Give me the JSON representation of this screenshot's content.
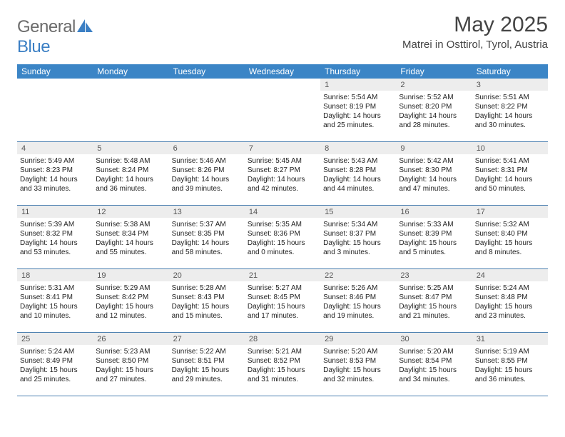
{
  "brand": {
    "part1": "General",
    "part2": "Blue"
  },
  "title": "May 2025",
  "location": "Matrei in Osttirol, Tyrol, Austria",
  "colors": {
    "header_bg": "#3b85c6",
    "daynum_bg": "#ededed",
    "rule": "#4a7fb0",
    "text": "#222222",
    "muted": "#6b6b6b"
  },
  "days_of_week": [
    "Sunday",
    "Monday",
    "Tuesday",
    "Wednesday",
    "Thursday",
    "Friday",
    "Saturday"
  ],
  "weeks": [
    [
      {
        "n": "",
        "sr": "",
        "ss": "",
        "dl1": "",
        "dl2": ""
      },
      {
        "n": "",
        "sr": "",
        "ss": "",
        "dl1": "",
        "dl2": ""
      },
      {
        "n": "",
        "sr": "",
        "ss": "",
        "dl1": "",
        "dl2": ""
      },
      {
        "n": "",
        "sr": "",
        "ss": "",
        "dl1": "",
        "dl2": ""
      },
      {
        "n": "1",
        "sr": "Sunrise: 5:54 AM",
        "ss": "Sunset: 8:19 PM",
        "dl1": "Daylight: 14 hours",
        "dl2": "and 25 minutes."
      },
      {
        "n": "2",
        "sr": "Sunrise: 5:52 AM",
        "ss": "Sunset: 8:20 PM",
        "dl1": "Daylight: 14 hours",
        "dl2": "and 28 minutes."
      },
      {
        "n": "3",
        "sr": "Sunrise: 5:51 AM",
        "ss": "Sunset: 8:22 PM",
        "dl1": "Daylight: 14 hours",
        "dl2": "and 30 minutes."
      }
    ],
    [
      {
        "n": "4",
        "sr": "Sunrise: 5:49 AM",
        "ss": "Sunset: 8:23 PM",
        "dl1": "Daylight: 14 hours",
        "dl2": "and 33 minutes."
      },
      {
        "n": "5",
        "sr": "Sunrise: 5:48 AM",
        "ss": "Sunset: 8:24 PM",
        "dl1": "Daylight: 14 hours",
        "dl2": "and 36 minutes."
      },
      {
        "n": "6",
        "sr": "Sunrise: 5:46 AM",
        "ss": "Sunset: 8:26 PM",
        "dl1": "Daylight: 14 hours",
        "dl2": "and 39 minutes."
      },
      {
        "n": "7",
        "sr": "Sunrise: 5:45 AM",
        "ss": "Sunset: 8:27 PM",
        "dl1": "Daylight: 14 hours",
        "dl2": "and 42 minutes."
      },
      {
        "n": "8",
        "sr": "Sunrise: 5:43 AM",
        "ss": "Sunset: 8:28 PM",
        "dl1": "Daylight: 14 hours",
        "dl2": "and 44 minutes."
      },
      {
        "n": "9",
        "sr": "Sunrise: 5:42 AM",
        "ss": "Sunset: 8:30 PM",
        "dl1": "Daylight: 14 hours",
        "dl2": "and 47 minutes."
      },
      {
        "n": "10",
        "sr": "Sunrise: 5:41 AM",
        "ss": "Sunset: 8:31 PM",
        "dl1": "Daylight: 14 hours",
        "dl2": "and 50 minutes."
      }
    ],
    [
      {
        "n": "11",
        "sr": "Sunrise: 5:39 AM",
        "ss": "Sunset: 8:32 PM",
        "dl1": "Daylight: 14 hours",
        "dl2": "and 53 minutes."
      },
      {
        "n": "12",
        "sr": "Sunrise: 5:38 AM",
        "ss": "Sunset: 8:34 PM",
        "dl1": "Daylight: 14 hours",
        "dl2": "and 55 minutes."
      },
      {
        "n": "13",
        "sr": "Sunrise: 5:37 AM",
        "ss": "Sunset: 8:35 PM",
        "dl1": "Daylight: 14 hours",
        "dl2": "and 58 minutes."
      },
      {
        "n": "14",
        "sr": "Sunrise: 5:35 AM",
        "ss": "Sunset: 8:36 PM",
        "dl1": "Daylight: 15 hours",
        "dl2": "and 0 minutes."
      },
      {
        "n": "15",
        "sr": "Sunrise: 5:34 AM",
        "ss": "Sunset: 8:37 PM",
        "dl1": "Daylight: 15 hours",
        "dl2": "and 3 minutes."
      },
      {
        "n": "16",
        "sr": "Sunrise: 5:33 AM",
        "ss": "Sunset: 8:39 PM",
        "dl1": "Daylight: 15 hours",
        "dl2": "and 5 minutes."
      },
      {
        "n": "17",
        "sr": "Sunrise: 5:32 AM",
        "ss": "Sunset: 8:40 PM",
        "dl1": "Daylight: 15 hours",
        "dl2": "and 8 minutes."
      }
    ],
    [
      {
        "n": "18",
        "sr": "Sunrise: 5:31 AM",
        "ss": "Sunset: 8:41 PM",
        "dl1": "Daylight: 15 hours",
        "dl2": "and 10 minutes."
      },
      {
        "n": "19",
        "sr": "Sunrise: 5:29 AM",
        "ss": "Sunset: 8:42 PM",
        "dl1": "Daylight: 15 hours",
        "dl2": "and 12 minutes."
      },
      {
        "n": "20",
        "sr": "Sunrise: 5:28 AM",
        "ss": "Sunset: 8:43 PM",
        "dl1": "Daylight: 15 hours",
        "dl2": "and 15 minutes."
      },
      {
        "n": "21",
        "sr": "Sunrise: 5:27 AM",
        "ss": "Sunset: 8:45 PM",
        "dl1": "Daylight: 15 hours",
        "dl2": "and 17 minutes."
      },
      {
        "n": "22",
        "sr": "Sunrise: 5:26 AM",
        "ss": "Sunset: 8:46 PM",
        "dl1": "Daylight: 15 hours",
        "dl2": "and 19 minutes."
      },
      {
        "n": "23",
        "sr": "Sunrise: 5:25 AM",
        "ss": "Sunset: 8:47 PM",
        "dl1": "Daylight: 15 hours",
        "dl2": "and 21 minutes."
      },
      {
        "n": "24",
        "sr": "Sunrise: 5:24 AM",
        "ss": "Sunset: 8:48 PM",
        "dl1": "Daylight: 15 hours",
        "dl2": "and 23 minutes."
      }
    ],
    [
      {
        "n": "25",
        "sr": "Sunrise: 5:24 AM",
        "ss": "Sunset: 8:49 PM",
        "dl1": "Daylight: 15 hours",
        "dl2": "and 25 minutes."
      },
      {
        "n": "26",
        "sr": "Sunrise: 5:23 AM",
        "ss": "Sunset: 8:50 PM",
        "dl1": "Daylight: 15 hours",
        "dl2": "and 27 minutes."
      },
      {
        "n": "27",
        "sr": "Sunrise: 5:22 AM",
        "ss": "Sunset: 8:51 PM",
        "dl1": "Daylight: 15 hours",
        "dl2": "and 29 minutes."
      },
      {
        "n": "28",
        "sr": "Sunrise: 5:21 AM",
        "ss": "Sunset: 8:52 PM",
        "dl1": "Daylight: 15 hours",
        "dl2": "and 31 minutes."
      },
      {
        "n": "29",
        "sr": "Sunrise: 5:20 AM",
        "ss": "Sunset: 8:53 PM",
        "dl1": "Daylight: 15 hours",
        "dl2": "and 32 minutes."
      },
      {
        "n": "30",
        "sr": "Sunrise: 5:20 AM",
        "ss": "Sunset: 8:54 PM",
        "dl1": "Daylight: 15 hours",
        "dl2": "and 34 minutes."
      },
      {
        "n": "31",
        "sr": "Sunrise: 5:19 AM",
        "ss": "Sunset: 8:55 PM",
        "dl1": "Daylight: 15 hours",
        "dl2": "and 36 minutes."
      }
    ]
  ]
}
